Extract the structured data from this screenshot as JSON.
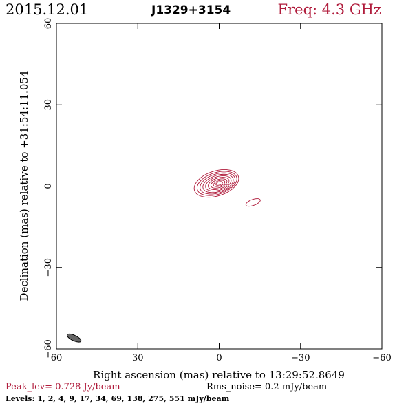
{
  "header": {
    "epoch": "2015.12.01",
    "source": "J1329+3154",
    "frequency": "Freq: 4.3 GHz"
  },
  "footer": {
    "peak": "Peak_lev=  0.728 Jy/beam",
    "rms": "Rms_noise=  0.2 mJy/beam",
    "levels": "Levels:   1,   2,   4,   9,  17,  34,  69, 138, 275, 551 mJy/beam"
  },
  "colors": {
    "contour": "#b01c3c",
    "frequency": "#b01c3c",
    "beam": "#666666"
  },
  "chart_data": {
    "type": "contour",
    "xlabel": "Right ascension (mas) relative to 13:29:52.8649",
    "ylabel": "Declination (mas) relative to +31:54:11.054",
    "xlim": [
      60,
      -60
    ],
    "ylim": [
      -60,
      60
    ],
    "xticks": [
      60,
      30,
      0,
      -30,
      -60
    ],
    "yticks": [
      60,
      30,
      0,
      -30,
      -60
    ],
    "xtick_labels": [
      "60",
      "30",
      "0",
      "−30",
      "−60"
    ],
    "ytick_labels": [
      "60",
      "30",
      "0",
      "−30",
      "−60"
    ],
    "levels_mJy": [
      1,
      2,
      4,
      9,
      17,
      34,
      69,
      138,
      275,
      551
    ],
    "contours": [
      {
        "cx": 1.0,
        "cy": 1.0,
        "a": 8.5,
        "b": 4.6,
        "pa": -18
      },
      {
        "cx": 0.8,
        "cy": 1.0,
        "a": 7.6,
        "b": 4.0,
        "pa": -18
      },
      {
        "cx": 0.6,
        "cy": 1.0,
        "a": 6.7,
        "b": 3.5,
        "pa": -18
      },
      {
        "cx": 0.4,
        "cy": 1.0,
        "a": 5.8,
        "b": 3.0,
        "pa": -18
      },
      {
        "cx": 0.3,
        "cy": 1.0,
        "a": 4.9,
        "b": 2.5,
        "pa": -18
      },
      {
        "cx": 0.2,
        "cy": 1.0,
        "a": 4.0,
        "b": 2.0,
        "pa": -18
      },
      {
        "cx": 0.1,
        "cy": 1.0,
        "a": 3.1,
        "b": 1.5,
        "pa": -18
      },
      {
        "cx": 0.0,
        "cy": 1.0,
        "a": 2.2,
        "b": 1.0,
        "pa": -18
      },
      {
        "cx": 0.0,
        "cy": 1.0,
        "a": 1.3,
        "b": 0.6,
        "pa": -18
      },
      {
        "cx": -12.5,
        "cy": -6.0,
        "a": 2.8,
        "b": 1.1,
        "pa": -20
      }
    ],
    "beam": {
      "cx": 53.5,
      "cy": -56.0,
      "a": 2.8,
      "b": 1.0,
      "pa": -25
    }
  }
}
